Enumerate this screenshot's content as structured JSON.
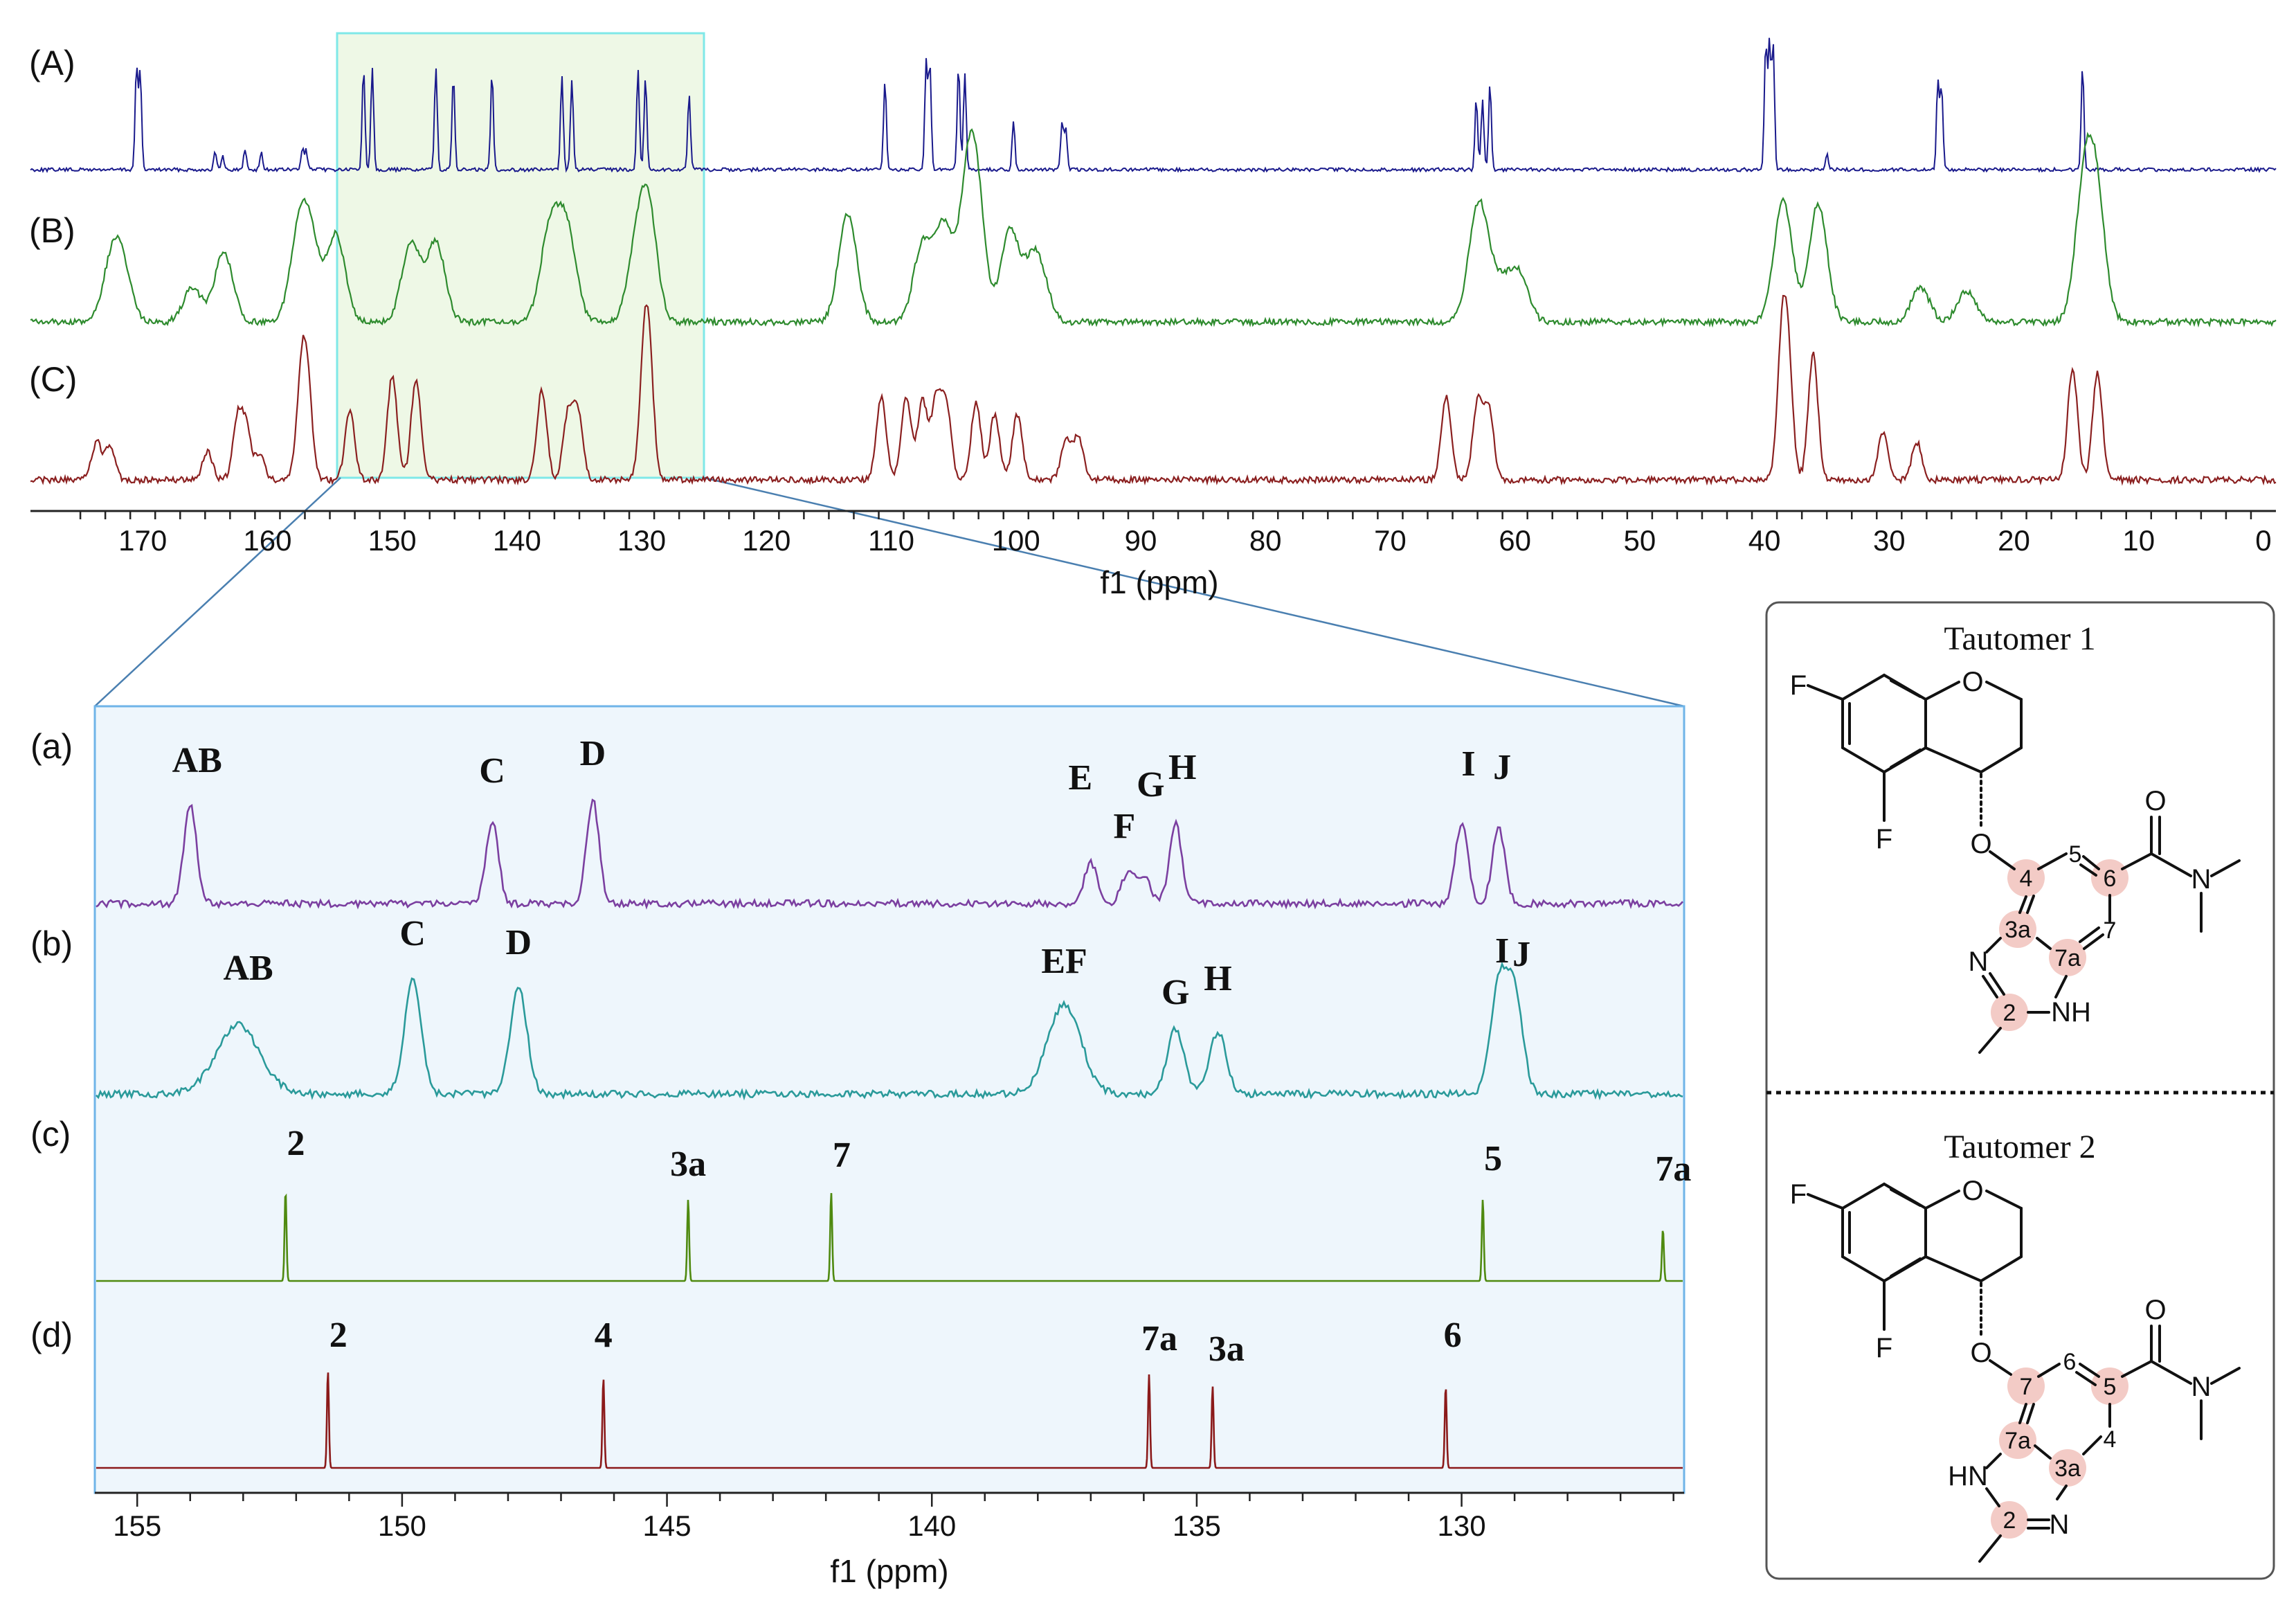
{
  "colors": {
    "A": "#1a1a8c",
    "B": "#2e8b2e",
    "C": "#8b2020",
    "a": "#7b3fa0",
    "b": "#2a9a9a",
    "c": "#4f8a10",
    "d": "#8b1a1a",
    "highlight": "#f3d1cd",
    "zoomBox": "#7fe8e8",
    "zoomFill": "#eef6fc"
  },
  "chart_data": [
    {
      "type": "line",
      "xlabel": "f1 (ppm)",
      "xlim": [
        179,
        -1
      ],
      "tick_labels": [
        "170",
        "160",
        "150",
        "140",
        "130",
        "120",
        "110",
        "100",
        "90",
        "80",
        "70",
        "60",
        "50",
        "40",
        "30",
        "20",
        "10",
        "0"
      ],
      "series": [
        {
          "name": "(A)",
          "peaks_ppm": [
            170.5,
            170.2,
            164.2,
            163.6,
            161.8,
            160.5,
            157.2,
            156.9,
            152.3,
            151.6,
            146.5,
            145.1,
            142.0,
            136.4,
            135.6,
            130.3,
            129.7,
            126.2,
            110.5,
            107.2,
            106.9,
            104.6,
            104.1,
            100.2,
            96.3,
            96.0,
            63.1,
            62.6,
            62.0,
            39.9,
            39.6,
            39.3,
            35.0,
            26.1,
            25.8,
            14.5
          ]
        },
        {
          "name": "(B)",
          "peaks_ppm": [
            172.5,
            171.6,
            166.0,
            163.5,
            157.5,
            156.5,
            154.5,
            148.5,
            146.5,
            137.5,
            136.5,
            135.8,
            130.5,
            129.5,
            113.5,
            107.5,
            105.8,
            103.9,
            103.2,
            100.5,
            98.8,
            98.0,
            63.2,
            62.5,
            60.9,
            59.6,
            38.5,
            35.7,
            27.5,
            23.8,
            14.4,
            13.4
          ]
        },
        {
          "name": "(C)",
          "peaks_ppm": [
            173.7,
            172.6,
            164.8,
            162.4,
            161.7,
            160.6,
            157.3,
            156.8,
            153.4,
            150.0,
            148.1,
            138.0,
            135.9,
            135.1,
            129.8,
            129.4,
            110.8,
            108.8,
            107.5,
            106.4,
            105.6,
            103.2,
            101.7,
            99.9,
            96.0,
            95.0,
            65.5,
            63.0,
            62.1,
            38.6,
            38.1,
            36.1,
            30.5,
            27.8,
            15.3,
            13.3
          ]
        }
      ]
    },
    {
      "type": "line",
      "xlabel": "f1 (ppm)",
      "xlim": [
        155.8,
        125.8
      ],
      "tick_labels": [
        "155",
        "150",
        "145",
        "140",
        "135",
        "130"
      ],
      "series": [
        {
          "name": "(a)",
          "peaks": [
            {
              "ppm": 154.0,
              "label": "AB"
            },
            {
              "ppm": 148.3,
              "label": "C"
            },
            {
              "ppm": 146.4,
              "label": "D"
            },
            {
              "ppm": 137.0,
              "label": "E"
            },
            {
              "ppm": 136.3,
              "label": "F"
            },
            {
              "ppm": 136.0,
              "label": "G"
            },
            {
              "ppm": 135.4,
              "label": "H"
            },
            {
              "ppm": 130.0,
              "label": "I"
            },
            {
              "ppm": 129.3,
              "label": "J"
            }
          ]
        },
        {
          "name": "(b)",
          "peaks": [
            {
              "ppm": 153.1,
              "label": "AB"
            },
            {
              "ppm": 149.8,
              "label": "C"
            },
            {
              "ppm": 147.8,
              "label": "D"
            },
            {
              "ppm": 137.5,
              "label": "EF"
            },
            {
              "ppm": 135.4,
              "label": "G"
            },
            {
              "ppm": 134.6,
              "label": "H"
            },
            {
              "ppm": 129.3,
              "label": "I"
            },
            {
              "ppm": 129.0,
              "label": "J"
            }
          ]
        },
        {
          "name": "(c)",
          "peaks": [
            {
              "ppm": 152.2,
              "label": "2"
            },
            {
              "ppm": 144.6,
              "label": "3a"
            },
            {
              "ppm": 141.9,
              "label": "7"
            },
            {
              "ppm": 129.6,
              "label": "5"
            },
            {
              "ppm": 126.2,
              "label": "7a"
            }
          ]
        },
        {
          "name": "(d)",
          "peaks": [
            {
              "ppm": 151.4,
              "label": "2"
            },
            {
              "ppm": 146.2,
              "label": "4"
            },
            {
              "ppm": 135.9,
              "label": "7a"
            },
            {
              "ppm": 134.7,
              "label": "3a"
            },
            {
              "ppm": 130.3,
              "label": "6"
            }
          ]
        }
      ]
    }
  ],
  "tautomers": [
    {
      "title": "Tautomer 1",
      "atoms": {
        "F_top": "F",
        "O_ring": "O",
        "F_bot": "F",
        "O_ether": "O",
        "O_carbonyl": "O",
        "N_amide": "N",
        "N_ring": "N",
        "NH": "NH",
        "c4": "4",
        "c5": "5",
        "c6": "6",
        "c3a": "3a",
        "c7a": "7a",
        "c7": "7",
        "c2": "2"
      }
    },
    {
      "title": "Tautomer 2",
      "atoms": {
        "F_top": "F",
        "O_ring": "O",
        "F_bot": "F",
        "O_ether": "O",
        "O_carbonyl": "O",
        "N_amide": "N",
        "N_ring": "N",
        "HN": "HN",
        "c7": "7",
        "c6": "6",
        "c5": "5",
        "c7a": "7a",
        "c3a": "3a",
        "c4": "4",
        "c2": "2"
      }
    }
  ]
}
